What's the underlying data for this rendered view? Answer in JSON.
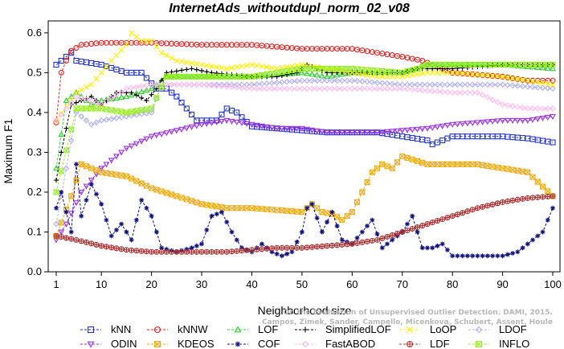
{
  "chart_data": {
    "type": "line",
    "title": "InternetAds_withoutdupl_norm_02_v08",
    "xlabel": "Neighborhood size",
    "ylabel": "Maximum F1",
    "xlim": [
      0,
      100
    ],
    "ylim": [
      0,
      0.63
    ],
    "xticks": [
      1,
      10,
      20,
      30,
      40,
      50,
      60,
      70,
      80,
      90,
      100
    ],
    "xtick_labels": [
      "1",
      "10",
      "20",
      "30",
      "40",
      "50",
      "60",
      "70",
      "80",
      "90",
      "100"
    ],
    "yticks": [
      0.0,
      0.1,
      0.2,
      0.3,
      0.4,
      0.5,
      0.6
    ],
    "ytick_labels": [
      "0.0",
      "0.1",
      "0.2",
      "0.3",
      "0.4",
      "0.5",
      "0.6"
    ],
    "legend_position": "bottom",
    "watermark": [
      "On the Evaluation of Unsupervised Outlier Detection. DAMI, 2015.",
      "Campos, Zimek, Sander, Campello, Micenkova, Schubert, Assent, Houle"
    ],
    "series": [
      {
        "name": "kNN",
        "color": "#2233cc",
        "marker": "square",
        "x": [
          1,
          2,
          4,
          5,
          10,
          15,
          18,
          21,
          23,
          25,
          27,
          29,
          31,
          33,
          35,
          37,
          40,
          45,
          50,
          55,
          60,
          65,
          70,
          75,
          76,
          80,
          85,
          90,
          95,
          100
        ],
        "y": [
          0.52,
          0.53,
          0.55,
          0.53,
          0.52,
          0.5,
          0.5,
          0.46,
          0.46,
          0.44,
          0.41,
          0.38,
          0.38,
          0.38,
          0.41,
          0.4,
          0.365,
          0.36,
          0.355,
          0.35,
          0.35,
          0.35,
          0.34,
          0.33,
          0.32,
          0.34,
          0.34,
          0.34,
          0.335,
          0.325
        ]
      },
      {
        "name": "kNNW",
        "color": "#dd2222",
        "marker": "circle",
        "x": [
          1,
          2,
          3,
          4,
          6,
          10,
          15,
          20,
          30,
          40,
          50,
          60,
          65,
          70,
          74,
          80,
          90,
          95,
          100
        ],
        "y": [
          0.375,
          0.5,
          0.53,
          0.555,
          0.57,
          0.575,
          0.575,
          0.575,
          0.57,
          0.57,
          0.56,
          0.56,
          0.55,
          0.54,
          0.53,
          0.5,
          0.49,
          0.48,
          0.48
        ]
      },
      {
        "name": "LOF",
        "color": "#33cc33",
        "marker": "triangle-up",
        "x": [
          1,
          3,
          5,
          8,
          10,
          15,
          20,
          23,
          30,
          40,
          50,
          55,
          60,
          70,
          73,
          75,
          80,
          90,
          100
        ],
        "y": [
          0.26,
          0.43,
          0.45,
          0.42,
          0.43,
          0.44,
          0.46,
          0.49,
          0.49,
          0.49,
          0.5,
          0.49,
          0.5,
          0.5,
          0.51,
          0.52,
          0.52,
          0.52,
          0.51
        ]
      },
      {
        "name": "SimplifiedLOF",
        "color": "#000000",
        "marker": "plus",
        "x": [
          1,
          2,
          3,
          4,
          6,
          8,
          10,
          13,
          16,
          19,
          21,
          23,
          28,
          32,
          40,
          45,
          49,
          51,
          55,
          60,
          70,
          73,
          80,
          90,
          100
        ],
        "y": [
          0.23,
          0.3,
          0.36,
          0.42,
          0.43,
          0.44,
          0.42,
          0.45,
          0.45,
          0.43,
          0.46,
          0.5,
          0.51,
          0.5,
          0.49,
          0.49,
          0.5,
          0.52,
          0.5,
          0.5,
          0.5,
          0.51,
          0.51,
          0.52,
          0.52
        ]
      },
      {
        "name": "LoOP",
        "color": "#ffee00",
        "marker": "x",
        "x": [
          1,
          5,
          8,
          12,
          15,
          16,
          18,
          20,
          22,
          25,
          30,
          35,
          40,
          45,
          50,
          55,
          60,
          65,
          70,
          75,
          80,
          90,
          100
        ],
        "y": [
          0.38,
          0.45,
          0.47,
          0.53,
          0.57,
          0.6,
          0.58,
          0.58,
          0.55,
          0.53,
          0.52,
          0.51,
          0.52,
          0.51,
          0.52,
          0.51,
          0.5,
          0.49,
          0.49,
          0.5,
          0.5,
          0.49,
          0.47
        ]
      },
      {
        "name": "LDOF",
        "color": "#b0b0ee",
        "marker": "diamond",
        "x": [
          1,
          5,
          8,
          10,
          15,
          20,
          22,
          25,
          30,
          40,
          50,
          60,
          70,
          75,
          80,
          90,
          100
        ],
        "y": [
          0.12,
          0.4,
          0.37,
          0.38,
          0.39,
          0.4,
          0.47,
          0.47,
          0.47,
          0.47,
          0.48,
          0.48,
          0.47,
          0.47,
          0.47,
          0.47,
          0.46
        ]
      },
      {
        "name": "ODIN",
        "color": "#9933dd",
        "marker": "triangle-down",
        "x": [
          1,
          3,
          6,
          10,
          15,
          20,
          25,
          30,
          35,
          40,
          45,
          50,
          55,
          60,
          65,
          70,
          75,
          80,
          85,
          90,
          95,
          100
        ],
        "y": [
          0.08,
          0.12,
          0.2,
          0.26,
          0.31,
          0.34,
          0.355,
          0.37,
          0.38,
          0.37,
          0.36,
          0.36,
          0.35,
          0.35,
          0.35,
          0.355,
          0.36,
          0.37,
          0.375,
          0.38,
          0.38,
          0.39
        ]
      },
      {
        "name": "KDEOS",
        "color": "#eeaa11",
        "marker": "square-x",
        "x": [
          1,
          4,
          6,
          10,
          15,
          20,
          25,
          30,
          35,
          40,
          45,
          50,
          52,
          54,
          56,
          58,
          60,
          62,
          64,
          66,
          68,
          70,
          75,
          80,
          85,
          90,
          95,
          100
        ],
        "y": [
          0.09,
          0.19,
          0.27,
          0.25,
          0.24,
          0.21,
          0.19,
          0.17,
          0.16,
          0.16,
          0.155,
          0.15,
          0.17,
          0.15,
          0.145,
          0.13,
          0.15,
          0.2,
          0.25,
          0.27,
          0.26,
          0.29,
          0.27,
          0.27,
          0.27,
          0.26,
          0.25,
          0.19
        ]
      },
      {
        "name": "COF",
        "color": "#11117a",
        "marker": "asterisk",
        "x": [
          1,
          2,
          4,
          5,
          6,
          8,
          10,
          12,
          14,
          16,
          18,
          20,
          22,
          25,
          28,
          30,
          32,
          34,
          36,
          38,
          40,
          42,
          44,
          46,
          48,
          50,
          51,
          52,
          54,
          56,
          58,
          60,
          62,
          64,
          66,
          68,
          70,
          72,
          74,
          76,
          78,
          80,
          85,
          90,
          93,
          95,
          98,
          100
        ],
        "y": [
          0.16,
          0.2,
          0.1,
          0.27,
          0.14,
          0.22,
          0.17,
          0.09,
          0.12,
          0.08,
          0.18,
          0.14,
          0.06,
          0.05,
          0.06,
          0.07,
          0.14,
          0.15,
          0.1,
          0.06,
          0.05,
          0.07,
          0.05,
          0.04,
          0.05,
          0.1,
          0.16,
          0.17,
          0.1,
          0.15,
          0.08,
          0.07,
          0.1,
          0.13,
          0.06,
          0.08,
          0.1,
          0.14,
          0.06,
          0.06,
          0.07,
          0.04,
          0.04,
          0.04,
          0.05,
          0.07,
          0.1,
          0.16
        ]
      },
      {
        "name": "FastABOD",
        "color": "#ffbbee",
        "marker": "diamond",
        "x": [
          1,
          5,
          10,
          15,
          20,
          25,
          30,
          40,
          50,
          60,
          70,
          80,
          85,
          90,
          95,
          100
        ],
        "y": [
          0.38,
          0.44,
          0.42,
          0.46,
          0.47,
          0.47,
          0.47,
          0.46,
          0.46,
          0.46,
          0.46,
          0.45,
          0.45,
          0.42,
          0.41,
          0.41
        ]
      },
      {
        "name": "LDF",
        "color": "#aa3333",
        "marker": "circle-plus",
        "x": [
          1,
          3,
          5,
          10,
          15,
          20,
          25,
          30,
          35,
          40,
          45,
          50,
          55,
          60,
          65,
          70,
          75,
          80,
          85,
          90,
          95,
          100
        ],
        "y": [
          0.09,
          0.085,
          0.08,
          0.065,
          0.055,
          0.05,
          0.05,
          0.05,
          0.05,
          0.055,
          0.06,
          0.06,
          0.065,
          0.07,
          0.08,
          0.1,
          0.12,
          0.14,
          0.16,
          0.175,
          0.185,
          0.19
        ]
      },
      {
        "name": "INFLO",
        "color": "#99ee22",
        "marker": "square-x",
        "x": [
          1,
          5,
          10,
          15,
          20,
          23,
          30,
          40,
          50,
          60,
          70,
          73,
          75,
          80,
          90,
          100
        ],
        "y": [
          0.2,
          0.41,
          0.41,
          0.4,
          0.41,
          0.49,
          0.49,
          0.49,
          0.51,
          0.51,
          0.5,
          0.51,
          0.52,
          0.52,
          0.52,
          0.52
        ]
      }
    ]
  }
}
